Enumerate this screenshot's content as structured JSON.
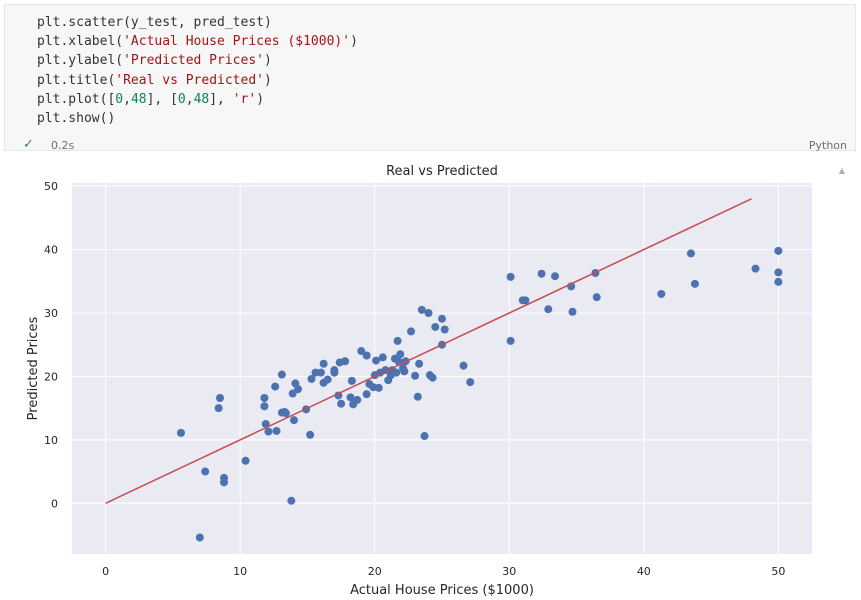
{
  "code": {
    "lines": [
      [
        {
          "t": "plt.scatter(y_test, pred_test)",
          "c": "fn"
        }
      ],
      [
        {
          "t": "plt.xlabel(",
          "c": "fn"
        },
        {
          "t": "'Actual House Prices ($1000)'",
          "c": "str"
        },
        {
          "t": ")",
          "c": "fn"
        }
      ],
      [
        {
          "t": "plt.ylabel(",
          "c": "fn"
        },
        {
          "t": "'Predicted Prices'",
          "c": "str"
        },
        {
          "t": ")",
          "c": "fn"
        }
      ],
      [
        {
          "t": "plt.title(",
          "c": "fn"
        },
        {
          "t": "'Real vs Predicted'",
          "c": "str"
        },
        {
          "t": ")",
          "c": "fn"
        }
      ],
      [
        {
          "t": "plt.plot([",
          "c": "fn"
        },
        {
          "t": "0",
          "c": "num"
        },
        {
          "t": ",",
          "c": "fn"
        },
        {
          "t": "48",
          "c": "num"
        },
        {
          "t": "], [",
          "c": "fn"
        },
        {
          "t": "0",
          "c": "num"
        },
        {
          "t": ",",
          "c": "fn"
        },
        {
          "t": "48",
          "c": "num"
        },
        {
          "t": "], ",
          "c": "fn"
        },
        {
          "t": "'r'",
          "c": "str"
        },
        {
          "t": ")",
          "c": "fn"
        }
      ],
      [
        {
          "t": "plt.show()",
          "c": "fn"
        }
      ]
    ],
    "exec_time": "0.2s",
    "language": "Python"
  },
  "colors": {
    "points": "#4c72b0",
    "line": "#c44e52",
    "plot_bg": "#eaeaf2",
    "grid": "#ffffff"
  },
  "chart_data": {
    "type": "scatter",
    "title": "Real vs Predicted",
    "xlabel": "Actual House Prices ($1000)",
    "ylabel": "Predicted Prices",
    "xlim": [
      -2.5,
      52.5
    ],
    "ylim": [
      -8,
      50.5
    ],
    "xticks": [
      0,
      10,
      20,
      30,
      40,
      50
    ],
    "yticks": [
      0,
      10,
      20,
      30,
      40,
      50
    ],
    "grid": true,
    "reference_line": {
      "x": [
        0,
        48
      ],
      "y": [
        0,
        48
      ],
      "color": "r"
    },
    "points": [
      [
        5.6,
        11.1
      ],
      [
        7.0,
        -5.4
      ],
      [
        7.4,
        5.0
      ],
      [
        8.4,
        15.0
      ],
      [
        8.5,
        16.6
      ],
      [
        8.8,
        4.0
      ],
      [
        8.8,
        3.3
      ],
      [
        10.4,
        6.7
      ],
      [
        11.8,
        15.3
      ],
      [
        11.8,
        16.6
      ],
      [
        11.9,
        12.5
      ],
      [
        12.1,
        11.3
      ],
      [
        12.6,
        18.4
      ],
      [
        12.7,
        11.4
      ],
      [
        13.1,
        20.3
      ],
      [
        13.1,
        14.3
      ],
      [
        13.3,
        14.4
      ],
      [
        13.4,
        14.2
      ],
      [
        13.8,
        0.4
      ],
      [
        13.9,
        17.3
      ],
      [
        14.0,
        13.1
      ],
      [
        14.1,
        18.9
      ],
      [
        14.3,
        18.0
      ],
      [
        14.9,
        14.8
      ],
      [
        15.2,
        10.8
      ],
      [
        15.3,
        19.6
      ],
      [
        15.6,
        20.6
      ],
      [
        16.0,
        20.6
      ],
      [
        16.2,
        19.0
      ],
      [
        16.2,
        22.0
      ],
      [
        16.5,
        19.5
      ],
      [
        17.0,
        20.6
      ],
      [
        17.0,
        21.0
      ],
      [
        17.3,
        17.0
      ],
      [
        17.4,
        22.2
      ],
      [
        17.5,
        15.7
      ],
      [
        17.8,
        22.4
      ],
      [
        18.2,
        16.7
      ],
      [
        18.3,
        19.3
      ],
      [
        18.4,
        15.6
      ],
      [
        18.7,
        16.3
      ],
      [
        19.0,
        24.0
      ],
      [
        19.4,
        23.3
      ],
      [
        19.4,
        17.2
      ],
      [
        19.6,
        18.8
      ],
      [
        19.9,
        18.3
      ],
      [
        20.0,
        20.2
      ],
      [
        20.1,
        22.5
      ],
      [
        20.3,
        18.2
      ],
      [
        20.4,
        20.6
      ],
      [
        20.6,
        23.0
      ],
      [
        20.8,
        21.0
      ],
      [
        21.0,
        19.4
      ],
      [
        21.2,
        20.2
      ],
      [
        21.3,
        21.0
      ],
      [
        21.5,
        22.8
      ],
      [
        21.6,
        20.6
      ],
      [
        21.7,
        25.6
      ],
      [
        21.8,
        22.3
      ],
      [
        21.9,
        23.5
      ],
      [
        22.1,
        21.3
      ],
      [
        22.2,
        20.8
      ],
      [
        22.3,
        22.4
      ],
      [
        22.7,
        27.1
      ],
      [
        23.0,
        20.1
      ],
      [
        23.2,
        16.8
      ],
      [
        23.3,
        22.0
      ],
      [
        23.5,
        30.5
      ],
      [
        23.7,
        10.6
      ],
      [
        24.0,
        30.0
      ],
      [
        24.1,
        20.2
      ],
      [
        24.3,
        19.8
      ],
      [
        24.5,
        27.8
      ],
      [
        25.0,
        29.1
      ],
      [
        25.0,
        25.0
      ],
      [
        25.2,
        27.4
      ],
      [
        26.6,
        21.7
      ],
      [
        27.1,
        19.1
      ],
      [
        30.1,
        35.7
      ],
      [
        30.1,
        25.6
      ],
      [
        31.0,
        32.0
      ],
      [
        31.2,
        32.0
      ],
      [
        32.4,
        36.2
      ],
      [
        32.9,
        30.6
      ],
      [
        33.4,
        35.8
      ],
      [
        34.6,
        34.2
      ],
      [
        34.7,
        30.2
      ],
      [
        36.4,
        36.3
      ],
      [
        36.5,
        32.5
      ],
      [
        41.3,
        33.0
      ],
      [
        43.5,
        39.4
      ],
      [
        43.8,
        34.6
      ],
      [
        48.3,
        37.0
      ],
      [
        50.0,
        39.8
      ],
      [
        50.0,
        36.4
      ],
      [
        50.0,
        34.9
      ]
    ]
  }
}
